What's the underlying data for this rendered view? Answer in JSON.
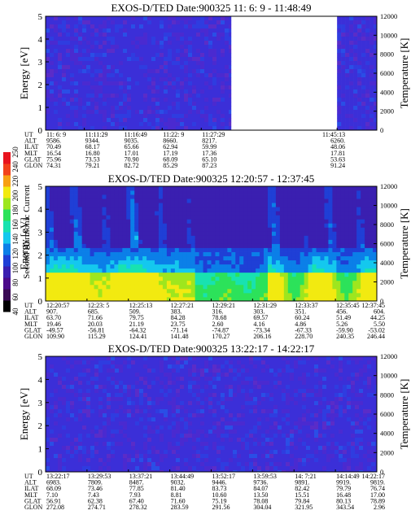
{
  "colorbar": {
    "label": "Second Harmonic Current",
    "ticks": [
      "40",
      "60",
      "80",
      "100",
      "120",
      "140",
      "160",
      "180",
      "200",
      "220",
      "240",
      "250"
    ],
    "colors": [
      "#000000",
      "#3a0a55",
      "#4b0a8a",
      "#3a1fb0",
      "#1f3fd6",
      "#0b7fe8",
      "#14c8ee",
      "#18e2b0",
      "#2ce25a",
      "#9ee61e",
      "#f2ea10",
      "#f7a012",
      "#f2421a",
      "#e8141e"
    ]
  },
  "chart_data": [
    {
      "type": "heatmap",
      "title": "EXOS-D/TED   Date:900325  11: 6: 9 - 11:48:49",
      "ylabel": "Energy [eV]",
      "y2label": "Temperature [K]",
      "ylim": [
        0,
        5
      ],
      "y2lim": [
        0,
        12000
      ],
      "yticks": [
        "0",
        "1",
        "2",
        "3",
        "4",
        "5"
      ],
      "y2ticks": [
        "0",
        "2000",
        "4000",
        "6000",
        "8000",
        "10000",
        "12000"
      ],
      "gap": [
        0.56,
        0.88
      ],
      "orbit_rows": [
        {
          "label": "UT",
          "values": [
            "11: 6: 9",
            "11:11:29",
            "11:16:49",
            "11:22: 9",
            "11:27:29",
            "11:45:13"
          ]
        },
        {
          "label": "ALT",
          "values": [
            "9586.",
            "9344.",
            "9035.",
            "8660.",
            "8217.",
            "6260."
          ]
        },
        {
          "label": "ILAT",
          "values": [
            "70.49",
            "68.17",
            "65.66",
            "62.94",
            "59.99",
            "48.06"
          ]
        },
        {
          "label": "MLT",
          "values": [
            "16.54",
            "16.80",
            "17.01",
            "17.19",
            "17.36",
            "17.81"
          ]
        },
        {
          "label": "GLAT",
          "values": [
            "75.96",
            "73.53",
            "70.90",
            "68.09",
            "65.10",
            "53.63"
          ]
        },
        {
          "label": "GLON",
          "values": [
            "74.31",
            "79.21",
            "82.72",
            "85.29",
            "87.23",
            "91.24"
          ]
        }
      ]
    },
    {
      "type": "heatmap",
      "title": "EXOS-D/TED   Date:900325  12:20:57 - 12:37:45",
      "ylabel": "Energy [eV]",
      "y2label": "Temperature [K]",
      "ylim": [
        0,
        5
      ],
      "y2lim": [
        0,
        12000
      ],
      "yticks": [
        "0",
        "1",
        "2",
        "3",
        "4",
        "5"
      ],
      "y2ticks": [
        "0",
        "2000",
        "4000",
        "6000",
        "8000",
        "10000",
        "12000"
      ],
      "orbit_rows": [
        {
          "label": "UT",
          "values": [
            "12:20:57",
            "12:23: 5",
            "12:25:13",
            "12:27:21",
            "12:29:21",
            "12:31:29",
            "12:33:37",
            "12:35:45",
            "12:37:45"
          ]
        },
        {
          "label": "ALT",
          "values": [
            "907.",
            "685.",
            "509.",
            "383.",
            "316.",
            "303.",
            "351.",
            "456.",
            "604."
          ]
        },
        {
          "label": "ILAT",
          "values": [
            "63.70",
            "71.66",
            "79.75",
            "84.28",
            "78.68",
            "69.57",
            "60.24",
            "51.49",
            "44.25"
          ]
        },
        {
          "label": "MLT",
          "values": [
            "19.46",
            "20.03",
            "21.19",
            "23.75",
            "2.60",
            "4.16",
            "4.86",
            "5.26",
            "5.50"
          ]
        },
        {
          "label": "GLAT",
          "values": [
            "-49.57",
            "-56.81",
            "-64.32",
            "-71.14",
            "-74.87",
            "-73.34",
            "-67.33",
            "-59.90",
            "-53.02"
          ]
        },
        {
          "label": "GLON",
          "values": [
            "109.90",
            "115.29",
            "124.41",
            "141.48",
            "170.27",
            "206.16",
            "228.70",
            "240.35",
            "246.44"
          ]
        }
      ]
    },
    {
      "type": "heatmap",
      "title": "EXOS-D/TED   Date:900325  13:22:17 - 14:22:17",
      "ylabel": "Energy [eV]",
      "y2label": "Temperature [K]",
      "ylim": [
        0,
        5
      ],
      "y2lim": [
        0,
        12000
      ],
      "yticks": [
        "0",
        "1",
        "2",
        "3",
        "4",
        "5"
      ],
      "y2ticks": [
        "0",
        "2000",
        "4000",
        "6000",
        "8000",
        "10000",
        "12000"
      ],
      "orbit_rows": [
        {
          "label": "UT",
          "values": [
            "13:22:17",
            "13:29:53",
            "13:37:21",
            "13:44:49",
            "13:52:17",
            "13:59:53",
            "14: 7:21",
            "14:14:49",
            "14:22:17"
          ]
        },
        {
          "label": "ALT",
          "values": [
            "6983.",
            "7809.",
            "8487.",
            "9032.",
            "9446.",
            "9736.",
            "9891.",
            "9919.",
            "9819."
          ]
        },
        {
          "label": "ILAT",
          "values": [
            "68.09",
            "73.46",
            "77.85",
            "81.40",
            "83.73",
            "84.07",
            "82.42",
            "79.79",
            "76.74"
          ]
        },
        {
          "label": "MLT",
          "values": [
            "7.10",
            "7.43",
            "7.93",
            "8.81",
            "10.60",
            "13.50",
            "15.51",
            "16.48",
            "17.00"
          ]
        },
        {
          "label": "GLAT",
          "values": [
            "56.91",
            "62.38",
            "67.40",
            "71.60",
            "75.19",
            "78.08",
            "79.84",
            "80.13",
            "78.89"
          ]
        },
        {
          "label": "GLON",
          "values": [
            "272.08",
            "274.71",
            "278.32",
            "283.59",
            "291.56",
            "304.04",
            "321.95",
            "343.54",
            "2.96"
          ]
        }
      ]
    }
  ]
}
